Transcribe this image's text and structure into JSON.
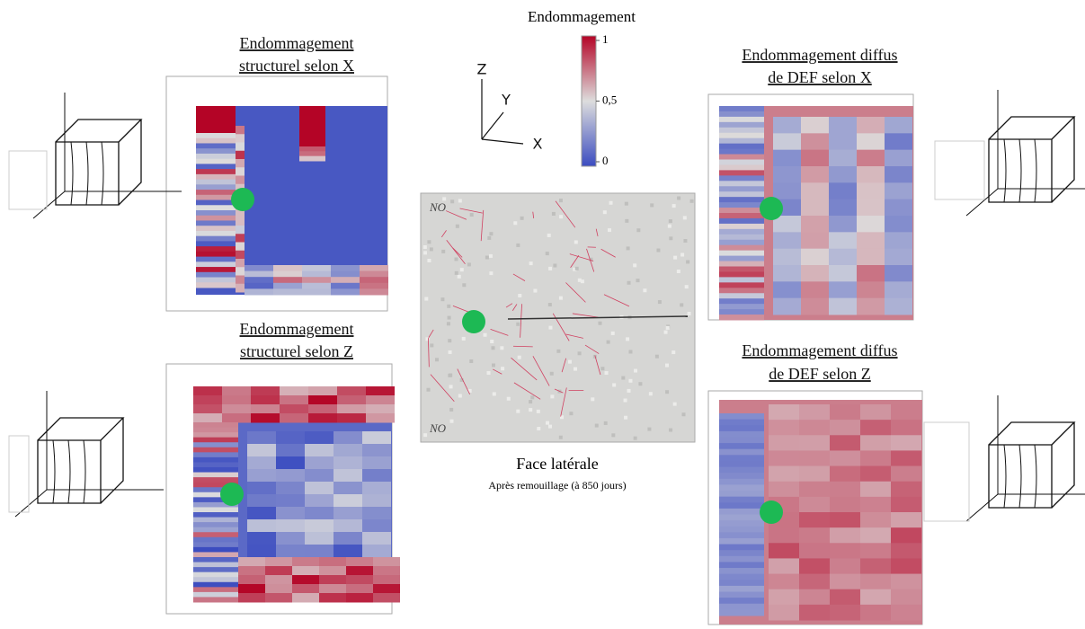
{
  "panels": [
    {
      "title": [
        "Endommagement",
        "structurel selon X"
      ]
    },
    {
      "title": [
        "Endommagement",
        "structurel selon Z"
      ]
    },
    {
      "title": [
        "Endommagement diffus",
        "de DEF selon X"
      ]
    },
    {
      "title": [
        "Endommagement diffus",
        "de DEF selon Z"
      ]
    }
  ],
  "colorbar": {
    "title": "Endommagement",
    "ticks": [
      {
        "value": 1,
        "label": "1"
      },
      {
        "value": 0.5,
        "label": "0,5"
      },
      {
        "value": 0,
        "label": "0"
      }
    ]
  },
  "axes": {
    "z": "Z",
    "y": "Y",
    "x": "X"
  },
  "photo": {
    "marks": [
      "NO",
      "NO"
    ],
    "caption": "Face latérale",
    "subcaption": "Après remouillage (à 850 jours)"
  }
}
